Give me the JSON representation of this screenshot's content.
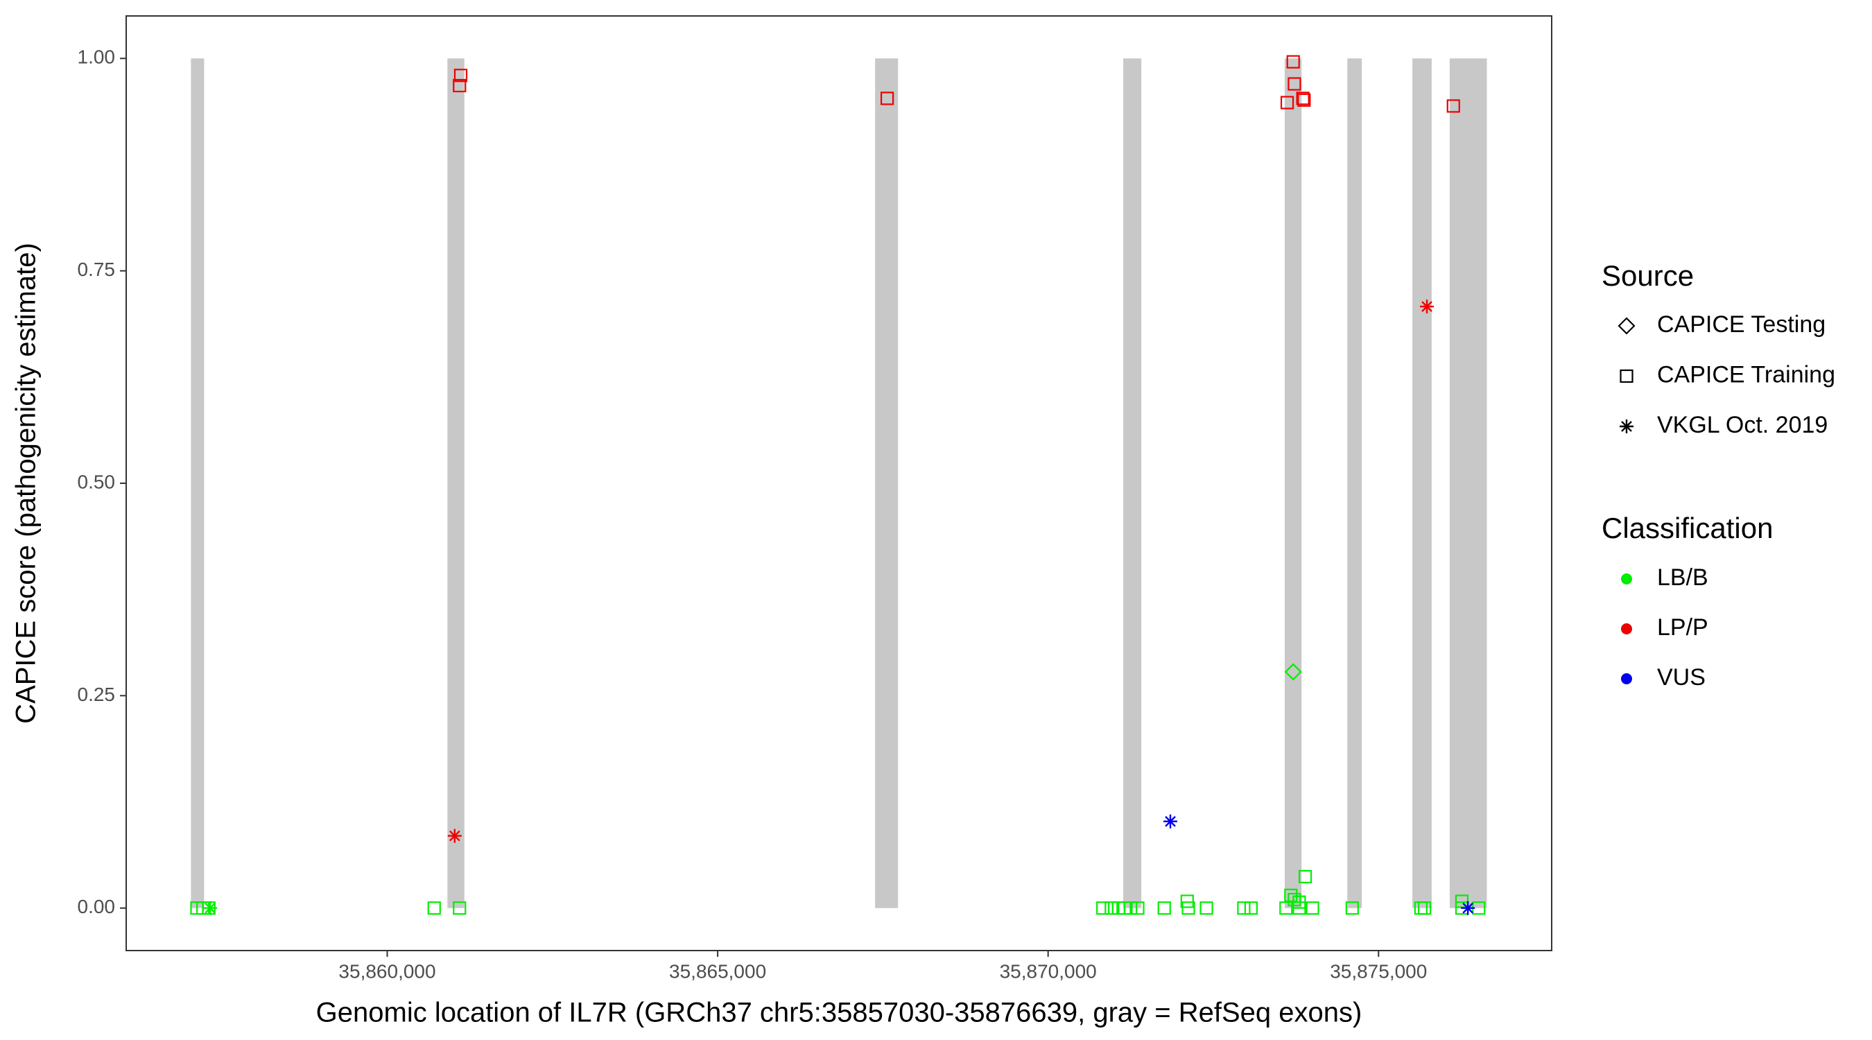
{
  "chart_data": {
    "type": "scatter",
    "xlabel": "Genomic location of IL7R (GRCh37 chr5:35857030-35876639, gray = RefSeq exons)",
    "ylabel": "CAPICE score (pathogenicity estimate)",
    "xlim": [
      35856050,
      35877620
    ],
    "ylim": [
      -0.05,
      1.05
    ],
    "xticks": [
      {
        "value": 35860000,
        "label": "35,860,000"
      },
      {
        "value": 35865000,
        "label": "35,865,000"
      },
      {
        "value": 35870000,
        "label": "35,870,000"
      },
      {
        "value": 35875000,
        "label": "35,875,000"
      }
    ],
    "yticks": [
      {
        "value": 0,
        "label": "0.00"
      },
      {
        "value": 0.25,
        "label": "0.25"
      },
      {
        "value": 0.5,
        "label": "0.50"
      },
      {
        "value": 0.75,
        "label": "0.75"
      },
      {
        "value": 1,
        "label": "1.00"
      }
    ],
    "exons": {
      "color": "#c8c8c8",
      "x_start": [
        35857030,
        35860911,
        35867382,
        35871137,
        35873580,
        35874528,
        35875512,
        35876077
      ],
      "x_end": [
        35857229,
        35861167,
        35867729,
        35871411,
        35873835,
        35874747,
        35875804,
        35876639
      ]
    },
    "legends": [
      {
        "title": "Source",
        "labels": [
          "CAPICE Testing",
          "CAPICE Training",
          "VKGL Oct. 2019"
        ],
        "shapes": [
          "diamond",
          "square",
          "asterisk"
        ]
      },
      {
        "title": "Classification",
        "labels": [
          "LB/B",
          "LP/P",
          "VUS"
        ],
        "colors": [
          "#00ee00",
          "#ee0000",
          "#0000ee"
        ]
      }
    ],
    "series": [
      {
        "source": "CAPICE Training",
        "classification": "LB/B",
        "x": [
          35857120,
          35857211,
          35857302,
          35860711,
          35861094,
          35870829,
          35870956,
          35871066,
          35871157,
          35871248,
          35871357,
          35871758,
          35872123,
          35872396,
          35872961,
          35873071,
          35873600,
          35873800,
          35874001,
          35874602,
          35875641,
          35875696,
          35876261,
          35876516,
          35873673,
          35873727,
          35873800,
          35873891,
          35872105,
          35876261
        ],
        "y": [
          0,
          0,
          0,
          0,
          0,
          0,
          0,
          0,
          0,
          0,
          0,
          0,
          0,
          0,
          0,
          0,
          0,
          0,
          0,
          0,
          0,
          0,
          0,
          0,
          0.015,
          0.01,
          0.007,
          0.037,
          0.008,
          0.008
        ]
      },
      {
        "source": "CAPICE Training",
        "classification": "LP/P",
        "x": [
          35861112,
          35861094,
          35867565,
          35873709,
          35873727,
          35873618,
          35873855,
          35873873,
          35876133
        ],
        "y": [
          0.98,
          0.968,
          0.953,
          0.996,
          0.97,
          0.948,
          0.953,
          0.951,
          0.944
        ]
      },
      {
        "source": "CAPICE Testing",
        "classification": "LB/B",
        "x": [
          35873709
        ],
        "y": [
          0.278
        ]
      },
      {
        "source": "VKGL Oct. 2019",
        "classification": "LB/B",
        "x": [
          35857320
        ],
        "y": [
          0
        ]
      },
      {
        "source": "VKGL Oct. 2019",
        "classification": "LP/P",
        "x": [
          35861021,
          35875732
        ],
        "y": [
          0.085,
          0.708
        ]
      },
      {
        "source": "VKGL Oct. 2019",
        "classification": "VUS",
        "x": [
          35871850,
          35876352
        ],
        "y": [
          0.102,
          0
        ]
      }
    ]
  }
}
